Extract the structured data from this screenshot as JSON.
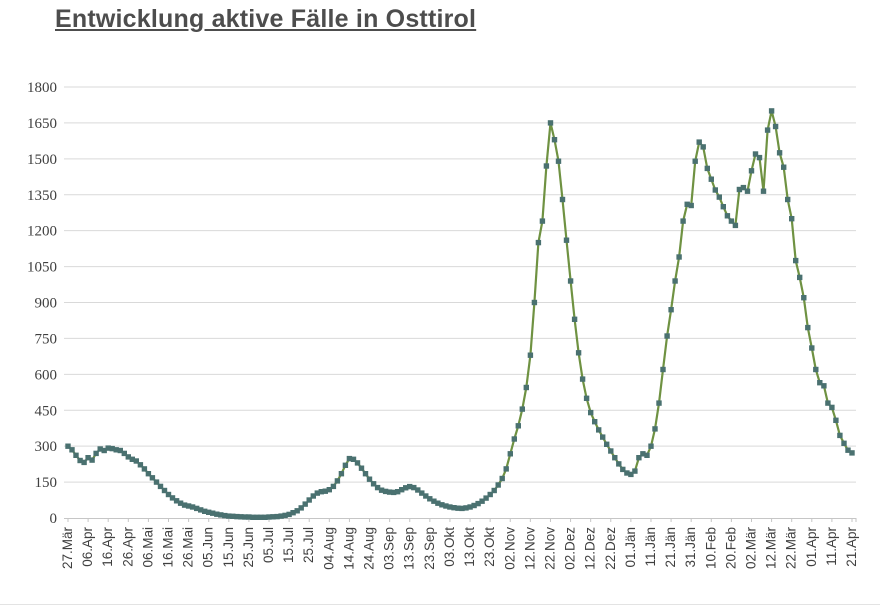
{
  "title": {
    "text": "Entwicklung aktive Fälle in Osttirol"
  },
  "chart_data": {
    "type": "line",
    "title": "Entwicklung aktive Fälle in Osttirol",
    "xlabel": "",
    "ylabel": "",
    "ylim": [
      0,
      1800
    ],
    "y_tick_step": 150,
    "y_ticks": [
      0,
      150,
      300,
      450,
      600,
      750,
      900,
      1050,
      1200,
      1350,
      1500,
      1650,
      1800
    ],
    "grid": "horizontal",
    "legend": "none",
    "x_span_days": 390,
    "x_label_interval_days": 10,
    "x_tick_labels": [
      "27.Mär",
      "06.Apr",
      "16.Apr",
      "26.Apr",
      "06.Mai",
      "16.Mai",
      "26.Mai",
      "05.Jun",
      "15.Jun",
      "25.Jun",
      "05.Jul",
      "15.Jul",
      "25.Jul",
      "04.Aug",
      "14.Aug",
      "24.Aug",
      "03.Sep",
      "13.Sep",
      "23.Sep",
      "03.Okt",
      "13.Okt",
      "23.Okt",
      "02.Nov",
      "12.Nov",
      "22.Nov",
      "02.Dez",
      "12.Dez",
      "22.Dez",
      "01.Jän",
      "11.Jän",
      "21.Jän",
      "31.Jän",
      "10.Feb",
      "20.Feb",
      "02.Mär",
      "12.Mär",
      "22.Mär",
      "01.Apr",
      "11.Apr",
      "21.Apr"
    ],
    "series": [
      {
        "name": "aktive Fälle",
        "line_color": "#6f9242",
        "marker_color": "#4a7170",
        "marker": "square",
        "sampling_interval_days": 2,
        "points": [
          [
            0,
            300
          ],
          [
            2,
            285
          ],
          [
            4,
            262
          ],
          [
            6,
            240
          ],
          [
            8,
            232
          ],
          [
            10,
            252
          ],
          [
            12,
            242
          ],
          [
            14,
            270
          ],
          [
            16,
            288
          ],
          [
            18,
            282
          ],
          [
            20,
            292
          ],
          [
            22,
            290
          ],
          [
            24,
            285
          ],
          [
            26,
            282
          ],
          [
            28,
            270
          ],
          [
            30,
            255
          ],
          [
            32,
            245
          ],
          [
            34,
            238
          ],
          [
            36,
            222
          ],
          [
            38,
            205
          ],
          [
            40,
            185
          ],
          [
            42,
            168
          ],
          [
            44,
            150
          ],
          [
            46,
            132
          ],
          [
            48,
            115
          ],
          [
            50,
            98
          ],
          [
            52,
            84
          ],
          [
            54,
            72
          ],
          [
            56,
            62
          ],
          [
            58,
            54
          ],
          [
            60,
            50
          ],
          [
            62,
            46
          ],
          [
            64,
            40
          ],
          [
            66,
            34
          ],
          [
            68,
            28
          ],
          [
            70,
            24
          ],
          [
            72,
            20
          ],
          [
            74,
            16
          ],
          [
            76,
            13
          ],
          [
            78,
            10
          ],
          [
            80,
            8
          ],
          [
            82,
            7
          ],
          [
            84,
            6
          ],
          [
            86,
            5
          ],
          [
            88,
            4
          ],
          [
            90,
            4
          ],
          [
            92,
            3
          ],
          [
            94,
            3
          ],
          [
            96,
            3
          ],
          [
            98,
            3
          ],
          [
            100,
            4
          ],
          [
            102,
            5
          ],
          [
            104,
            6
          ],
          [
            106,
            8
          ],
          [
            108,
            11
          ],
          [
            110,
            15
          ],
          [
            112,
            22
          ],
          [
            114,
            30
          ],
          [
            116,
            42
          ],
          [
            118,
            58
          ],
          [
            120,
            75
          ],
          [
            122,
            92
          ],
          [
            124,
            104
          ],
          [
            126,
            110
          ],
          [
            128,
            112
          ],
          [
            130,
            118
          ],
          [
            132,
            132
          ],
          [
            134,
            155
          ],
          [
            136,
            185
          ],
          [
            138,
            220
          ],
          [
            140,
            248
          ],
          [
            142,
            245
          ],
          [
            144,
            230
          ],
          [
            146,
            208
          ],
          [
            148,
            185
          ],
          [
            150,
            162
          ],
          [
            152,
            143
          ],
          [
            154,
            127
          ],
          [
            156,
            116
          ],
          [
            158,
            111
          ],
          [
            160,
            108
          ],
          [
            162,
            107
          ],
          [
            164,
            110
          ],
          [
            166,
            118
          ],
          [
            168,
            126
          ],
          [
            170,
            131
          ],
          [
            172,
            127
          ],
          [
            174,
            117
          ],
          [
            176,
            104
          ],
          [
            178,
            92
          ],
          [
            180,
            80
          ],
          [
            182,
            70
          ],
          [
            184,
            62
          ],
          [
            186,
            55
          ],
          [
            188,
            50
          ],
          [
            190,
            46
          ],
          [
            192,
            43
          ],
          [
            194,
            41
          ],
          [
            196,
            40
          ],
          [
            198,
            42
          ],
          [
            200,
            46
          ],
          [
            202,
            52
          ],
          [
            204,
            60
          ],
          [
            206,
            70
          ],
          [
            208,
            83
          ],
          [
            210,
            98
          ],
          [
            212,
            115
          ],
          [
            214,
            138
          ],
          [
            216,
            165
          ],
          [
            218,
            205
          ],
          [
            220,
            268
          ],
          [
            222,
            330
          ],
          [
            224,
            385
          ],
          [
            226,
            455
          ],
          [
            228,
            545
          ],
          [
            230,
            680
          ],
          [
            232,
            900
          ],
          [
            234,
            1150
          ],
          [
            236,
            1240
          ],
          [
            238,
            1470
          ],
          [
            240,
            1650
          ],
          [
            242,
            1580
          ],
          [
            244,
            1490
          ],
          [
            246,
            1330
          ],
          [
            248,
            1160
          ],
          [
            250,
            990
          ],
          [
            252,
            830
          ],
          [
            254,
            690
          ],
          [
            256,
            580
          ],
          [
            258,
            500
          ],
          [
            260,
            440
          ],
          [
            262,
            402
          ],
          [
            264,
            368
          ],
          [
            266,
            338
          ],
          [
            268,
            308
          ],
          [
            270,
            280
          ],
          [
            272,
            252
          ],
          [
            274,
            226
          ],
          [
            276,
            203
          ],
          [
            278,
            188
          ],
          [
            280,
            182
          ],
          [
            282,
            196
          ],
          [
            284,
            252
          ],
          [
            286,
            268
          ],
          [
            288,
            262
          ],
          [
            290,
            300
          ],
          [
            292,
            372
          ],
          [
            294,
            480
          ],
          [
            296,
            620
          ],
          [
            298,
            760
          ],
          [
            300,
            870
          ],
          [
            302,
            990
          ],
          [
            304,
            1090
          ],
          [
            306,
            1240
          ],
          [
            308,
            1310
          ],
          [
            310,
            1305
          ],
          [
            312,
            1490
          ],
          [
            314,
            1570
          ],
          [
            316,
            1550
          ],
          [
            318,
            1460
          ],
          [
            320,
            1415
          ],
          [
            322,
            1370
          ],
          [
            324,
            1340
          ],
          [
            326,
            1300
          ],
          [
            328,
            1262
          ],
          [
            330,
            1240
          ],
          [
            332,
            1222
          ],
          [
            334,
            1372
          ],
          [
            336,
            1380
          ],
          [
            338,
            1365
          ],
          [
            340,
            1450
          ],
          [
            342,
            1520
          ],
          [
            344,
            1505
          ],
          [
            346,
            1365
          ],
          [
            348,
            1620
          ],
          [
            350,
            1700
          ],
          [
            352,
            1635
          ],
          [
            354,
            1525
          ],
          [
            356,
            1465
          ],
          [
            358,
            1330
          ],
          [
            360,
            1250
          ],
          [
            362,
            1075
          ],
          [
            364,
            1005
          ],
          [
            366,
            920
          ],
          [
            368,
            795
          ],
          [
            370,
            710
          ],
          [
            372,
            620
          ],
          [
            374,
            565
          ],
          [
            376,
            552
          ],
          [
            378,
            480
          ],
          [
            380,
            462
          ],
          [
            382,
            408
          ],
          [
            384,
            345
          ],
          [
            386,
            312
          ],
          [
            388,
            283
          ],
          [
            390,
            272
          ]
        ]
      }
    ],
    "colors": {
      "line": "#6f9242",
      "marker": "#4a7170",
      "gridline": "#d9d9d9",
      "axis": "#c6c6c6",
      "axis_text": "#404040",
      "title_text": "#4d4d4d",
      "background": "#ffffff"
    }
  }
}
